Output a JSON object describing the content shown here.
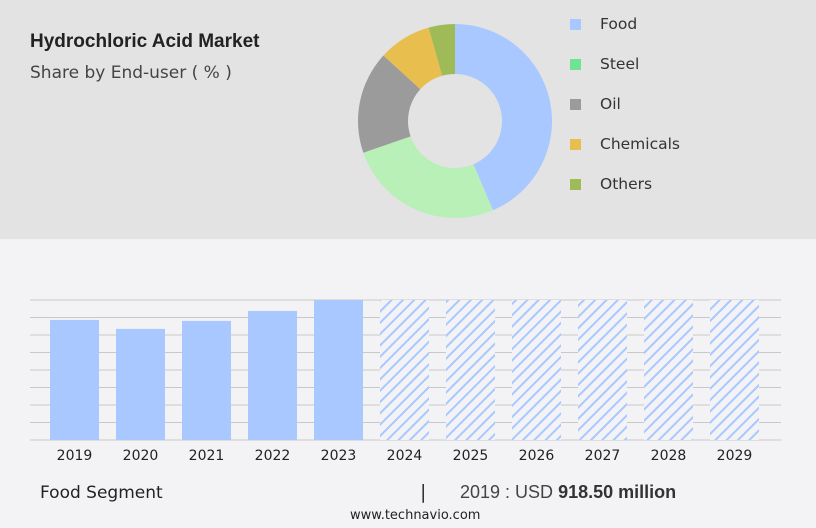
{
  "header": {
    "title": "Hydrochloric Acid Market",
    "subtitle": "Share by End-user ( % )"
  },
  "chart_data": [
    {
      "type": "pie",
      "variant": "donut",
      "title": "Hydrochloric Acid Market",
      "subtitle": "Share by End-user ( % )",
      "legend_position": "right",
      "slices": [
        {
          "name": "Food",
          "value": 43.6,
          "color": "#a8c8ff"
        },
        {
          "name": "Steel",
          "value": 26.1,
          "color": "#b8f0b8",
          "legend_color": "#6ee391"
        },
        {
          "name": "Oil",
          "value": 17.1,
          "color": "#9b9b9b"
        },
        {
          "name": "Chemicals",
          "value": 8.8,
          "color": "#e8be4e"
        },
        {
          "name": "Others",
          "value": 4.4,
          "color": "#9fbb58"
        }
      ]
    },
    {
      "type": "bar",
      "title": "Food Segment",
      "grid": true,
      "color": "#a8c8ff",
      "categories": [
        "2019",
        "2020",
        "2021",
        "2022",
        "2023",
        "2024",
        "2025",
        "2026",
        "2027",
        "2028",
        "2029"
      ],
      "values": [
        918.5,
        850,
        911,
        987,
        1071,
        null,
        null,
        null,
        null,
        null,
        null
      ],
      "forecast": [
        false,
        false,
        false,
        false,
        false,
        true,
        true,
        true,
        true,
        true,
        true
      ],
      "ylim": [
        0,
        1071
      ]
    }
  ],
  "footer": {
    "segment": "Food Segment",
    "separator": "|",
    "value_prefix": "2019 : USD ",
    "value": "918.50 million",
    "site": "www.technavio.com"
  }
}
